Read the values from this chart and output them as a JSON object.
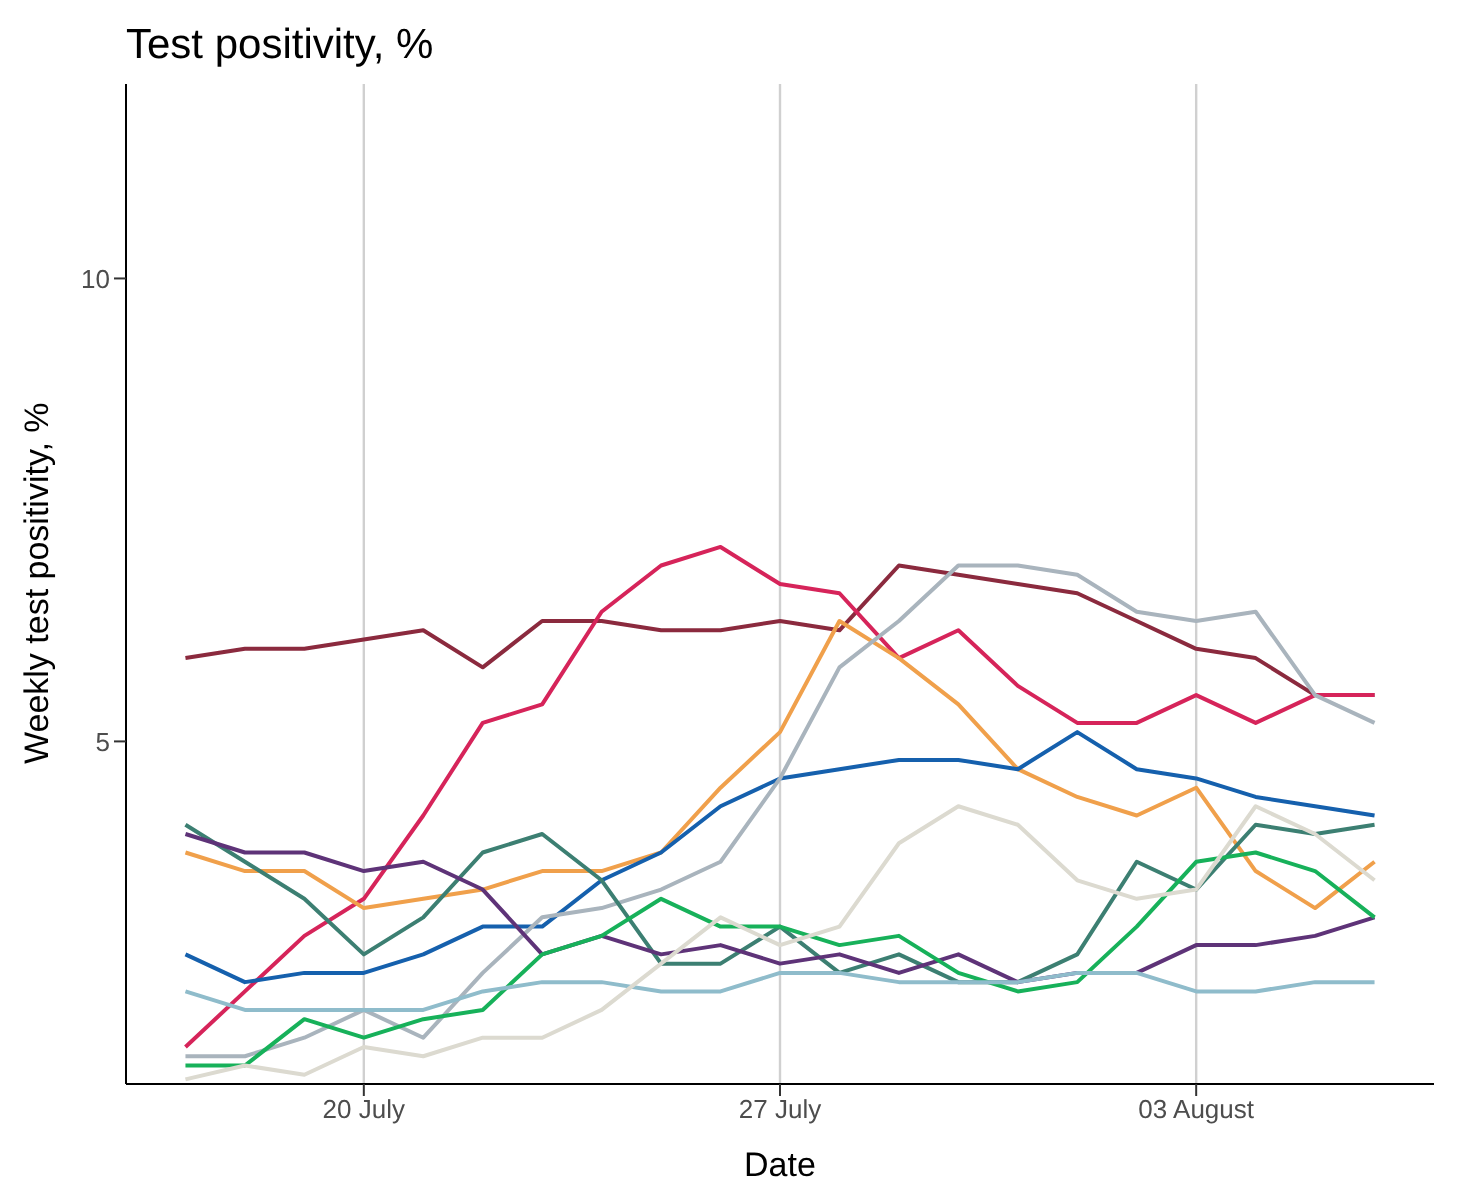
{
  "chart_data": {
    "type": "line",
    "title": "Test positivity, %",
    "xlabel": "Date",
    "ylabel": "Weekly test positivity, %",
    "x": [
      "--07-17",
      "--07-18",
      "--07-19",
      "--07-20",
      "--07-21",
      "--07-22",
      "--07-23",
      "--07-24",
      "--07-25",
      "--07-26",
      "--07-27",
      "--07-28",
      "--07-29",
      "--07-30",
      "--07-31",
      "--08-01",
      "--08-02",
      "--08-03",
      "--08-04",
      "--08-05",
      "--08-06"
    ],
    "xlim": [
      "--07-16",
      "--08-07"
    ],
    "xticks": [
      {
        "value": "--07-20",
        "label": "20 July"
      },
      {
        "value": "--07-27",
        "label": "27 July"
      },
      {
        "value": "--08-03",
        "label": "03 August"
      }
    ],
    "ylim": [
      1.3,
      12.1
    ],
    "yticks": [
      5,
      10
    ],
    "grid": "x",
    "legend": false,
    "marker": "none",
    "line_style": "solid",
    "series": [
      {
        "color": "#8b2a3e",
        "values": [
          5.9,
          6.0,
          6.0,
          6.1,
          6.2,
          5.8,
          6.3,
          6.3,
          6.2,
          6.2,
          6.3,
          6.2,
          6.9,
          6.8,
          6.7,
          6.6,
          6.3,
          6.0,
          5.9,
          5.5,
          5.5
        ]
      },
      {
        "color": "#d6245a",
        "values": [
          1.7,
          2.3,
          2.9,
          3.3,
          4.2,
          5.2,
          5.4,
          6.4,
          6.9,
          7.1,
          6.7,
          6.6,
          5.9,
          6.2,
          5.6,
          5.2,
          5.2,
          5.5,
          5.2,
          5.5,
          5.5
        ]
      },
      {
        "color": "#f0a04b",
        "values": [
          3.8,
          3.6,
          3.6,
          3.2,
          3.3,
          3.4,
          3.6,
          3.6,
          3.8,
          4.5,
          5.1,
          6.3,
          5.9,
          5.4,
          4.7,
          4.4,
          4.2,
          4.5,
          3.6,
          3.2,
          3.7
        ]
      },
      {
        "color": "#1560ad",
        "values": [
          2.7,
          2.4,
          2.5,
          2.5,
          2.7,
          3.0,
          3.0,
          3.5,
          3.8,
          4.3,
          4.6,
          4.7,
          4.8,
          4.8,
          4.7,
          5.1,
          4.7,
          4.6,
          4.4,
          4.3,
          4.2
        ]
      },
      {
        "color": "#a9b4bd",
        "values": [
          1.6,
          1.6,
          1.8,
          2.1,
          1.8,
          2.5,
          3.1,
          3.2,
          3.4,
          3.7,
          4.6,
          5.8,
          6.3,
          6.9,
          6.9,
          6.8,
          6.4,
          6.3,
          6.4,
          5.5,
          5.2
        ]
      },
      {
        "color": "#3c7f72",
        "values": [
          4.1,
          3.7,
          3.3,
          2.7,
          3.1,
          3.8,
          4.0,
          3.5,
          2.6,
          2.6,
          3.0,
          2.5,
          2.7,
          2.4,
          2.4,
          2.7,
          3.7,
          3.4,
          4.1,
          4.0,
          4.1
        ]
      },
      {
        "color": "#5e3378",
        "values": [
          4.0,
          3.8,
          3.8,
          3.6,
          3.7,
          3.4,
          2.7,
          2.9,
          2.7,
          2.8,
          2.6,
          2.7,
          2.5,
          2.7,
          2.4,
          2.5,
          2.5,
          2.8,
          2.8,
          2.9,
          3.1
        ]
      },
      {
        "color": "#17b15a",
        "values": [
          1.5,
          1.5,
          2.0,
          1.8,
          2.0,
          2.1,
          2.7,
          2.9,
          3.3,
          3.0,
          3.0,
          2.8,
          2.9,
          2.5,
          2.3,
          2.4,
          3.0,
          3.7,
          3.8,
          3.6,
          3.1
        ]
      },
      {
        "color": "#8fbccb",
        "values": [
          2.3,
          2.1,
          2.1,
          2.1,
          2.1,
          2.3,
          2.4,
          2.4,
          2.3,
          2.3,
          2.5,
          2.5,
          2.4,
          2.4,
          2.4,
          2.5,
          2.5,
          2.3,
          2.3,
          2.4,
          2.4
        ]
      },
      {
        "color": "#dcdad0",
        "values": [
          1.35,
          1.5,
          1.4,
          1.7,
          1.6,
          1.8,
          1.8,
          2.1,
          2.6,
          3.1,
          2.8,
          3.0,
          3.9,
          4.3,
          4.1,
          3.5,
          3.3,
          3.4,
          4.3,
          4.0,
          3.5
        ]
      }
    ]
  }
}
